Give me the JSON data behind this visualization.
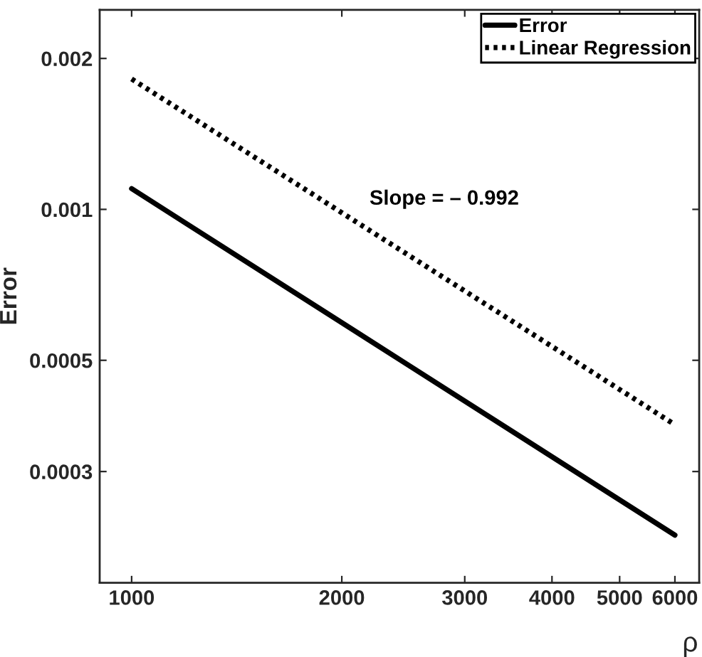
{
  "chart_data": {
    "type": "line",
    "xlabel": "ρ",
    "ylabel": "Error",
    "log": "xy",
    "x": [
      1000,
      6000
    ],
    "series": [
      {
        "name": "Error",
        "color": "#000000",
        "values": [
          0.0011,
          0.000224
        ],
        "line_style": "solid"
      },
      {
        "name": "Linear Regression",
        "color": "#000000",
        "values": [
          0.00182,
          0.000372
        ],
        "line_style": "dotted"
      }
    ],
    "annotations": [
      "Slope = – 0.992"
    ],
    "xlim": [
      900,
      6500
    ],
    "xticks": [
      1000,
      2000,
      3000,
      4000,
      5000,
      6000
    ],
    "ylim": [
      0.00018,
      0.0025
    ],
    "yticks": [
      0.0003,
      0.0005,
      0.001,
      0.002
    ],
    "grid": false,
    "legend": "top right"
  }
}
